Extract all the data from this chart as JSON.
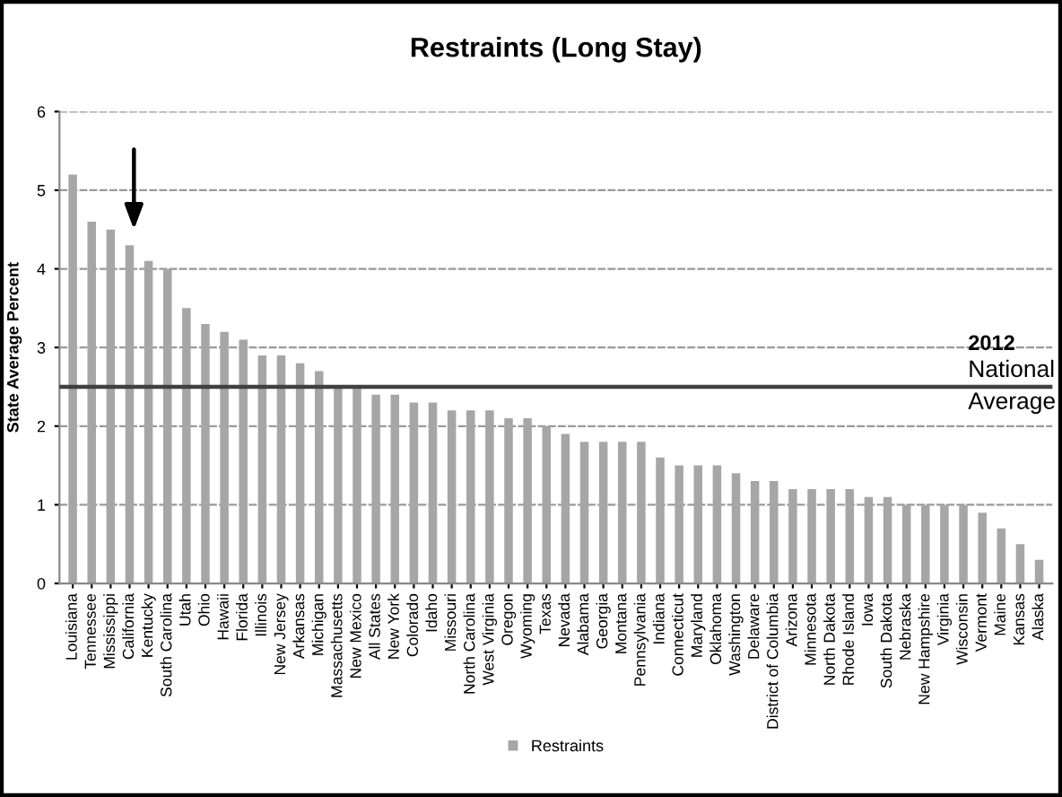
{
  "chart_data": {
    "type": "bar",
    "title": "Restraints (Long Stay)",
    "ylabel": "State Average Percent",
    "categories": [
      "Louisiana",
      "Tennessee",
      "Mississippi",
      "California",
      "Kentucky",
      "South Carolina",
      "Utah",
      "Ohio",
      "Hawaii",
      "Florida",
      "Illinois",
      "New Jersey",
      "Arkansas",
      "Michigan",
      "Massachusetts",
      "New Mexico",
      "All States",
      "New York",
      "Colorado",
      "Idaho",
      "Missouri",
      "North Carolina",
      "West Virginia",
      "Oregon",
      "Wyoming",
      "Texas",
      "Nevada",
      "Alabama",
      "Georgia",
      "Montana",
      "Pennsylvania",
      "Indiana",
      "Connecticut",
      "Maryland",
      "Oklahoma",
      "Washington",
      "Delaware",
      "District of Columbia",
      "Arizona",
      "Minnesota",
      "North Dakota",
      "Rhode Island",
      "Iowa",
      "South Dakota",
      "Nebraska",
      "New Hampshire",
      "Virginia",
      "Wisconsin",
      "Vermont",
      "Maine",
      "Kansas",
      "Alaska"
    ],
    "series": [
      {
        "name": "Restraints",
        "color": "#a6a6a6",
        "values": [
          5.2,
          4.6,
          4.5,
          4.3,
          4.1,
          4.0,
          3.5,
          3.3,
          3.2,
          3.1,
          2.9,
          2.9,
          2.8,
          2.7,
          2.5,
          2.5,
          2.4,
          2.4,
          2.3,
          2.3,
          2.2,
          2.2,
          2.2,
          2.1,
          2.1,
          2.0,
          1.9,
          1.8,
          1.8,
          1.8,
          1.8,
          1.6,
          1.5,
          1.5,
          1.5,
          1.4,
          1.3,
          1.3,
          1.2,
          1.2,
          1.2,
          1.2,
          1.1,
          1.1,
          1.0,
          1.0,
          1.0,
          1.0,
          0.9,
          0.7,
          0.5,
          0.3
        ]
      }
    ],
    "ylim": [
      0,
      6
    ],
    "yticks": [
      0,
      1,
      2,
      3,
      4,
      5,
      6
    ],
    "grid": "y",
    "legend": "bottom",
    "ref_lines": [
      {
        "axis": "y",
        "value": 2.5,
        "label": "2012 National Average",
        "color": "#404040"
      }
    ]
  }
}
